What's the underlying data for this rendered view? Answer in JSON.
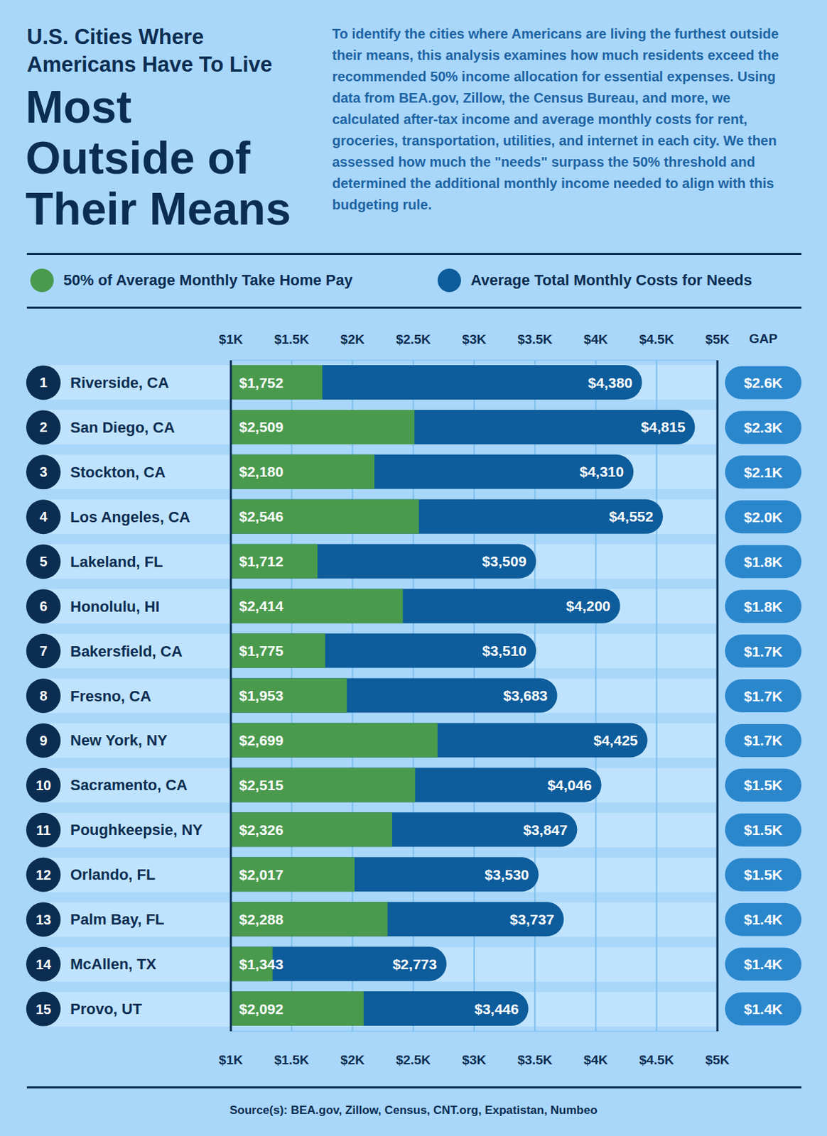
{
  "chart_data": {
    "type": "bar",
    "orientation": "horizontal",
    "stacked": false,
    "data_labels": true,
    "grid": true,
    "legend": "top",
    "subtitle": "U.S. Cities Where Americans Have To Live",
    "title": "Most Outside of Their Means",
    "description": "To identify the cities where Americans are living the furthest outside their means, this analysis examines how much residents exceed the recommended 50% income allocation for essential expenses. Using data from BEA.gov, Zillow, the Census Bureau, and more, we calculated after-tax income and average monthly costs for rent, groceries, transportation, utilities, and internet in each city. We then assessed how much the \"needs\" surpass the 50% threshold and determined the additional monthly income needed to align with this budgeting rule.",
    "source": "Source(s): BEA.gov, Zillow, Census, CNT.org, Expatistan, Numbeo",
    "ranks": [
      1,
      2,
      3,
      4,
      5,
      6,
      7,
      8,
      9,
      10,
      11,
      12,
      13,
      14,
      15
    ],
    "categories": [
      "Riverside, CA",
      "San Diego, CA",
      "Stockton, CA",
      "Los Angeles, CA",
      "Lakeland, FL",
      "Honolulu, HI",
      "Bakersfield, CA",
      "Fresno, CA",
      "New York, NY",
      "Sacramento, CA",
      "Poughkeepsie, NY",
      "Orlando, FL",
      "Palm Bay, FL",
      "McAllen, TX",
      "Provo, UT"
    ],
    "series": [
      {
        "name": "50% of Average Monthly Take Home Pay",
        "color": "#4a9a4e",
        "values": [
          1752,
          2509,
          2180,
          2546,
          1712,
          2414,
          1775,
          1953,
          2699,
          2515,
          2326,
          2017,
          2288,
          1343,
          2092
        ],
        "value_labels": [
          "$1,752",
          "$2,509",
          "$2,180",
          "$2,546",
          "$1,712",
          "$2,414",
          "$1,775",
          "$1,953",
          "$2,699",
          "$2,515",
          "$2,326",
          "$2,017",
          "$2,288",
          "$1,343",
          "$2,092"
        ]
      },
      {
        "name": "Average Total Monthly Costs for Needs",
        "color": "#0d5c9b",
        "values": [
          4380,
          4815,
          4310,
          4552,
          3509,
          4200,
          3510,
          3683,
          4425,
          4046,
          3847,
          3530,
          3737,
          2773,
          3446
        ],
        "value_labels": [
          "$4,380",
          "$4,815",
          "$4,310",
          "$4,552",
          "$3,509",
          "$4,200",
          "$3,510",
          "$3,683",
          "$4,425",
          "$4,046",
          "$3,847",
          "$3,530",
          "$3,737",
          "$2,773",
          "$3,446"
        ]
      }
    ],
    "gap": {
      "title": "GAP",
      "values": [
        2600,
        2300,
        2100,
        2000,
        1800,
        1800,
        1700,
        1700,
        1700,
        1500,
        1500,
        1500,
        1400,
        1400,
        1400
      ],
      "value_labels": [
        "$2.6K",
        "$2.3K",
        "$2.1K",
        "$2.0K",
        "$1.8K",
        "$1.8K",
        "$1.7K",
        "$1.7K",
        "$1.7K",
        "$1.5K",
        "$1.5K",
        "$1.5K",
        "$1.4K",
        "$1.4K",
        "$1.4K"
      ]
    },
    "xlim": [
      1000,
      5000
    ],
    "xticks": [
      {
        "value": 1000,
        "label": "$1K"
      },
      {
        "value": 1500,
        "label": "$1.5K"
      },
      {
        "value": 2000,
        "label": "$2K"
      },
      {
        "value": 2500,
        "label": "$2.5K"
      },
      {
        "value": 3000,
        "label": "$3K"
      },
      {
        "value": 3500,
        "label": "$3.5K"
      },
      {
        "value": 4000,
        "label": "$4K"
      },
      {
        "value": 4500,
        "label": "$4.5K"
      },
      {
        "value": 5000,
        "label": "$5K"
      }
    ]
  }
}
